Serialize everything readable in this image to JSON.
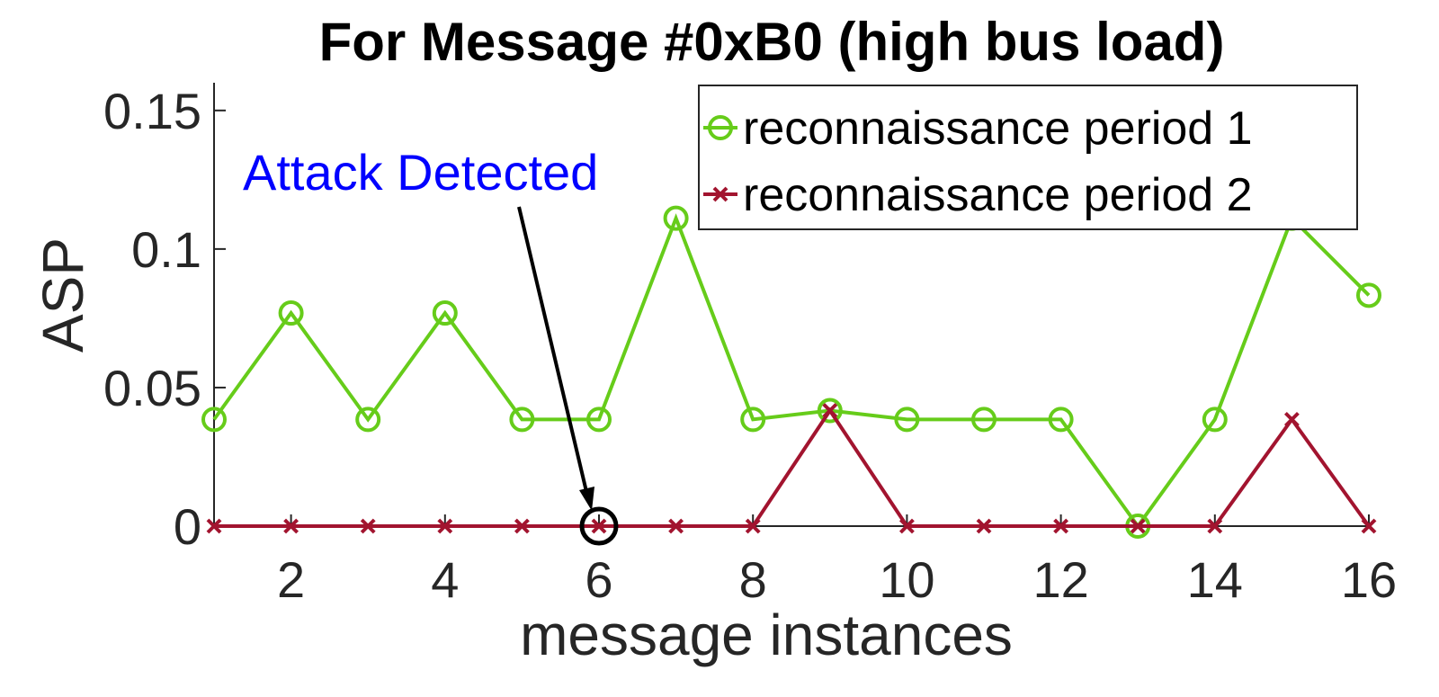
{
  "chart_data": {
    "type": "line",
    "title": "For Message #0xB0 (high bus load)",
    "xlabel": "message instances",
    "ylabel": "ASP",
    "xlim": [
      1,
      16
    ],
    "ylim": [
      0,
      0.16
    ],
    "xticks": [
      2,
      4,
      6,
      8,
      10,
      12,
      14,
      16
    ],
    "xtick_labels": [
      "2",
      "4",
      "6",
      "8",
      "10",
      "12",
      "14",
      "16"
    ],
    "yticks": [
      0,
      0.05,
      0.1,
      0.15
    ],
    "ytick_labels": [
      "0",
      "0.05",
      "0.1",
      "0.15"
    ],
    "x": [
      1,
      2,
      3,
      4,
      5,
      6,
      7,
      8,
      9,
      10,
      11,
      12,
      13,
      14,
      15,
      16
    ],
    "series": [
      {
        "name": "reconnaissance period 1",
        "color": "#66cc1a",
        "marker": "circle",
        "values": [
          0.0385,
          0.0769,
          0.0385,
          0.0769,
          0.0385,
          0.0385,
          0.1111,
          0.0385,
          0.0417,
          0.0385,
          0.0385,
          0.0385,
          0.0,
          0.0385,
          0.1111,
          0.0833
        ]
      },
      {
        "name": "reconnaissance period 2",
        "color": "#a2142f",
        "marker": "x",
        "values": [
          0,
          0,
          0,
          0,
          0,
          0,
          0,
          0,
          0.0417,
          0,
          0,
          0,
          0,
          0,
          0.0385,
          0
        ]
      }
    ],
    "legend": "top-right",
    "grid": false,
    "annotations": [
      {
        "text": "Attack Detected",
        "color": "#0000ff",
        "target_x": 6,
        "target_y": 0
      }
    ]
  }
}
